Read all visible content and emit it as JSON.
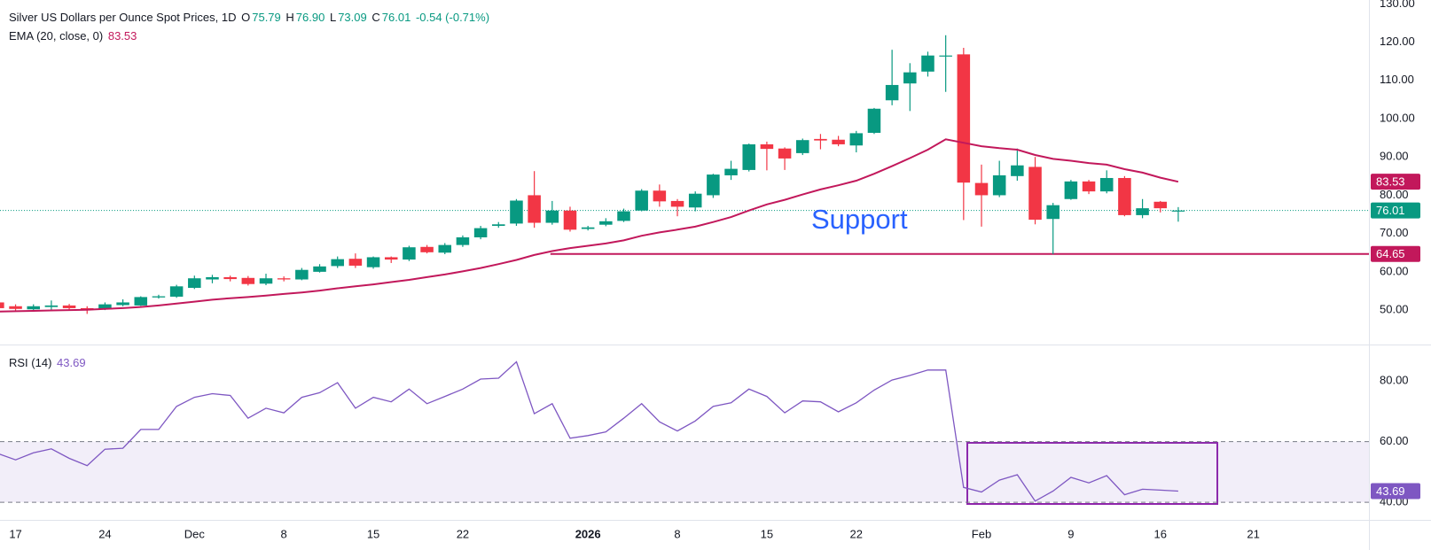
{
  "header": {
    "title": "Silver US Dollars per Ounce Spot Prices, 1D",
    "ohlc_keys": [
      "O",
      "H",
      "L",
      "C"
    ],
    "ohlc_values": [
      "75.79",
      "76.90",
      "73.09",
      "76.01"
    ],
    "change": "-0.54 (-0.71%)"
  },
  "chart_data": [
    {
      "type": "candlestick",
      "open": [
        52,
        51,
        50.2,
        50.8,
        51.2,
        50.5,
        50.2,
        51.3,
        51.2,
        53.3,
        53.5,
        55.8,
        58,
        58.6,
        58.4,
        56.9,
        58.3,
        58,
        60,
        61.5,
        63.4,
        61.2,
        63.8,
        63.2,
        66.5,
        65,
        67,
        69,
        72,
        72.6,
        80,
        72.8,
        76,
        71.2,
        72.3,
        73.3,
        76,
        81.2,
        78.5,
        76.8,
        80,
        85.2,
        86.6,
        93.3,
        92.2,
        91,
        94.7,
        94.5,
        93,
        96.3,
        104.8,
        109.2,
        112.3,
        116.4,
        116.8,
        83.2,
        80,
        85,
        87.4,
        73.8,
        79,
        83.6,
        81,
        84.5,
        74.8,
        78.3,
        75.79
      ],
      "high": [
        53,
        51.5,
        51.5,
        52.5,
        51.6,
        51,
        52,
        52.8,
        53.6,
        54,
        56.6,
        59,
        59.2,
        59,
        58.9,
        59.5,
        58.8,
        61,
        62,
        64,
        64.8,
        64,
        64,
        66.8,
        67,
        67.5,
        69.5,
        72,
        73,
        79,
        86.3,
        78.5,
        77,
        72,
        74,
        76.5,
        81.6,
        82.8,
        79,
        81,
        85.6,
        89,
        93.5,
        94,
        92.5,
        94.8,
        96,
        95.5,
        96.8,
        102.8,
        118,
        114.5,
        117.5,
        121.8,
        118.5,
        88,
        89,
        92.2,
        90,
        78,
        84,
        84,
        86.5,
        85,
        79,
        78.5,
        76.9
      ],
      "low": [
        50,
        49.8,
        49.6,
        50,
        49.9,
        49,
        50,
        51,
        51.1,
        53,
        53.2,
        55.5,
        57,
        57.5,
        56.4,
        56.5,
        57.5,
        57.8,
        59.8,
        61,
        61,
        60.8,
        62.3,
        62.8,
        64.8,
        64.6,
        66.5,
        68.5,
        71.5,
        72,
        71.5,
        72.3,
        70.5,
        70.8,
        71.9,
        73,
        75.8,
        77,
        74.5,
        75.8,
        79.3,
        84,
        86.2,
        86.5,
        86.6,
        90.5,
        92,
        92.8,
        91.2,
        96,
        103.5,
        102,
        111,
        107,
        73.5,
        71.8,
        79.5,
        83.8,
        72.4,
        64.6,
        78.8,
        80.3,
        80.5,
        74.5,
        74,
        75.5,
        73.09
      ],
      "close": [
        50.5,
        50.3,
        51,
        51.2,
        50.5,
        50,
        51.5,
        52,
        53.4,
        53.6,
        56.2,
        58.3,
        58.6,
        58.1,
        56.8,
        58.3,
        58,
        60.5,
        61.4,
        63.3,
        61.6,
        63.8,
        63.2,
        66.4,
        65.1,
        67,
        69,
        71.4,
        72.4,
        78.6,
        72.8,
        76,
        71,
        71.6,
        73.2,
        75.8,
        81.2,
        78.4,
        77,
        80.4,
        85.4,
        86.9,
        93.3,
        92.1,
        89.6,
        94.4,
        94.3,
        93.3,
        96.2,
        102.6,
        108.8,
        112.1,
        116.5,
        116.5,
        83.3,
        80,
        85.2,
        87.8,
        73.6,
        77.4,
        83.6,
        81,
        84.5,
        74.8,
        76.6,
        76.6,
        76.01
      ],
      "up_color": "#089981",
      "down_color": "#f23645",
      "series": [
        {
          "name": "EMA (20, close, 0)",
          "color": "#c2185b",
          "values": [
            49.6,
            49.7,
            49.8,
            49.9,
            50,
            50.1,
            50.3,
            50.5,
            50.8,
            51.2,
            51.7,
            52.2,
            52.7,
            53.1,
            53.4,
            53.8,
            54.2,
            54.6,
            55.1,
            55.7,
            56.2,
            56.7,
            57.3,
            57.9,
            58.6,
            59.3,
            60.1,
            61,
            62,
            63.1,
            64.4,
            65.4,
            66.2,
            66.8,
            67.4,
            68.2,
            69.4,
            70.3,
            71,
            71.8,
            73,
            74.3,
            76,
            77.6,
            78.8,
            80.2,
            81.5,
            82.6,
            83.8,
            85.6,
            87.6,
            89.7,
            91.9,
            94.6,
            93.7,
            92.8,
            92.3,
            91.9,
            90.5,
            89.5,
            89,
            88.4,
            88,
            86.8,
            85.9,
            84.6,
            83.53
          ]
        }
      ],
      "support": {
        "label": "Support",
        "value": 64.65,
        "color": "#c2185b",
        "label_color": "#2962ff"
      },
      "xlim": [
        0.13,
        76.66
      ],
      "xticks": [
        {
          "value": 1,
          "label": "17"
        },
        {
          "value": 6,
          "label": "24"
        },
        {
          "value": 11,
          "label": "Dec"
        },
        {
          "value": 16,
          "label": "8"
        },
        {
          "value": 21,
          "label": "15"
        },
        {
          "value": 26,
          "label": "22"
        },
        {
          "value": 33,
          "label": "2026"
        },
        {
          "value": 38,
          "label": "8"
        },
        {
          "value": 43,
          "label": "15"
        },
        {
          "value": 48,
          "label": "22"
        },
        {
          "value": 55,
          "label": "Feb"
        },
        {
          "value": 60,
          "label": "9"
        },
        {
          "value": 65,
          "label": "16"
        },
        {
          "value": 70.2,
          "label": "21"
        }
      ],
      "ylim": [
        41,
        131
      ],
      "yticks": [
        {
          "value": 50,
          "label": "50.00"
        },
        {
          "value": 60,
          "label": "60.00"
        },
        {
          "value": 70,
          "label": "70.00"
        },
        {
          "value": 80,
          "label": "80.00"
        },
        {
          "value": 90,
          "label": "90.00"
        },
        {
          "value": 100,
          "label": "100.00"
        },
        {
          "value": 110,
          "label": "110.00"
        },
        {
          "value": 120,
          "label": "120.00"
        },
        {
          "value": 130,
          "label": "130.00"
        }
      ]
    },
    {
      "type": "line",
      "series": [
        {
          "name": "RSI (14)",
          "color": "#7e57c2",
          "values": [
            56.1,
            54,
            56.3,
            57.6,
            54.5,
            52.1,
            57.5,
            57.8,
            64,
            64,
            71.6,
            74.6,
            75.8,
            75.2,
            67.7,
            71,
            69.5,
            74.6,
            76.1,
            79.4,
            71,
            74.6,
            73.1,
            77.3,
            72.5,
            74.9,
            77.3,
            80.6,
            80.9,
            86.3,
            69.2,
            72.5,
            61.1,
            62,
            63.2,
            67.7,
            72.5,
            66.5,
            63.5,
            66.8,
            71.6,
            72.8,
            77.3,
            74.9,
            69.5,
            73.4,
            73.1,
            69.8,
            72.8,
            77,
            80.3,
            81.8,
            83.6,
            83.6,
            44.9,
            43.4,
            47.3,
            49.1,
            40.4,
            43.7,
            48.2,
            46.4,
            48.8,
            42.5,
            44.3,
            44,
            43.69
          ]
        }
      ],
      "band": [
        40,
        60
      ],
      "band_color": "#7e57c2",
      "ylim": [
        34.2,
        91.7
      ],
      "yticks": [
        {
          "value": 40,
          "label": "40.00"
        },
        {
          "value": 60,
          "label": "60.00"
        },
        {
          "value": 80,
          "label": "80.00"
        }
      ]
    }
  ]
}
